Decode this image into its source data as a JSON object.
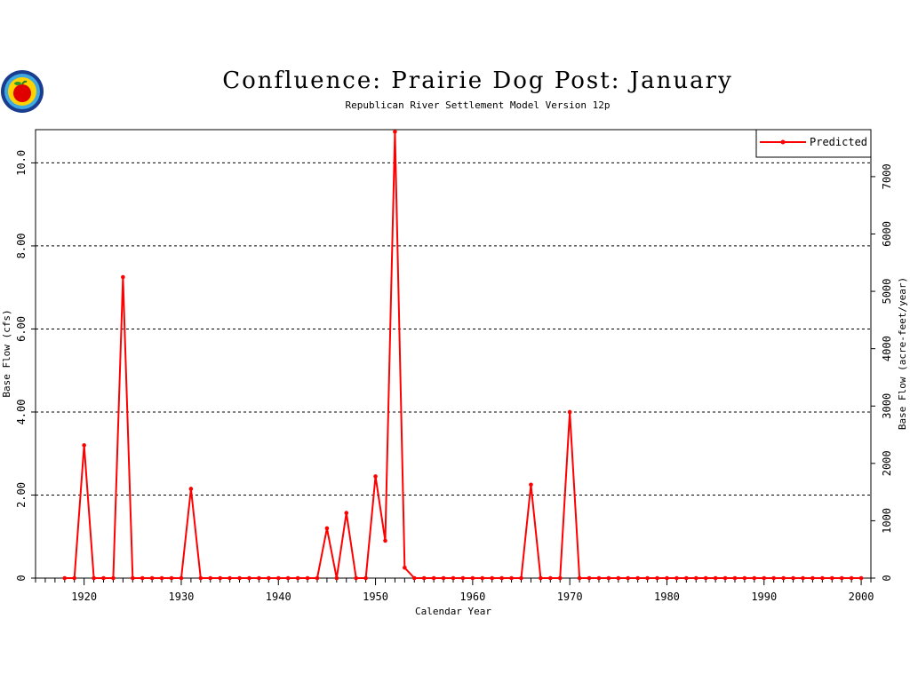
{
  "chart_data": {
    "type": "line",
    "title": "Confluence: Prairie Dog Post: January",
    "subtitle": "Republican River Settlement Model Version 12p",
    "xlabel": "Calendar Year",
    "ylabel": "Base Flow (cfs)",
    "y2label": "Base Flow (acre-feet/year)",
    "xlim": [
      1915,
      2001
    ],
    "ylim": [
      0,
      10.8
    ],
    "y2lim": [
      0,
      7819
    ],
    "x_ticks": [
      "1920",
      "1930",
      "1940",
      "1950",
      "1960",
      "1970",
      "1980",
      "1990",
      "2000"
    ],
    "y_ticks": [
      "0",
      "2.00",
      "4.00",
      "6.00",
      "8.00",
      "10.0"
    ],
    "y2_ticks": [
      "0",
      "1000",
      "2000",
      "3000",
      "4000",
      "5000",
      "6000",
      "7000"
    ],
    "grid": "horizontal dashed at left-axis ticks",
    "legend_position": "top-right",
    "series": [
      {
        "name": "Predicted",
        "color": "#ff0000",
        "x": [
          1918,
          1919,
          1920,
          1921,
          1922,
          1923,
          1924,
          1925,
          1926,
          1927,
          1928,
          1929,
          1930,
          1931,
          1932,
          1933,
          1934,
          1935,
          1936,
          1937,
          1938,
          1939,
          1940,
          1941,
          1942,
          1943,
          1944,
          1945,
          1946,
          1947,
          1948,
          1949,
          1950,
          1951,
          1952,
          1953,
          1954,
          1955,
          1956,
          1957,
          1958,
          1959,
          1960,
          1961,
          1962,
          1963,
          1964,
          1965,
          1966,
          1967,
          1968,
          1969,
          1970,
          1971,
          1972,
          1973,
          1974,
          1975,
          1976,
          1977,
          1978,
          1979,
          1980,
          1981,
          1982,
          1983,
          1984,
          1985,
          1986,
          1987,
          1988,
          1989,
          1990,
          1991,
          1992,
          1993,
          1994,
          1995,
          1996,
          1997,
          1998,
          1999,
          2000
        ],
        "y": [
          0,
          0,
          3.2,
          0,
          0,
          0,
          7.25,
          0,
          0,
          0,
          0,
          0,
          0,
          2.15,
          0,
          0,
          0,
          0,
          0,
          0,
          0,
          0,
          0,
          0,
          0,
          0,
          0,
          1.2,
          0,
          1.57,
          0,
          0,
          2.45,
          0.9,
          10.75,
          0.25,
          0,
          0,
          0,
          0,
          0,
          0,
          0,
          0,
          0,
          0,
          0,
          0,
          2.25,
          0,
          0,
          0,
          4.0,
          0,
          0,
          0,
          0,
          0,
          0,
          0,
          0,
          0,
          0,
          0,
          0,
          0,
          0,
          0,
          0,
          0,
          0,
          0,
          0,
          0,
          0,
          0,
          0,
          0,
          0,
          0,
          0,
          0,
          0
        ]
      }
    ]
  }
}
